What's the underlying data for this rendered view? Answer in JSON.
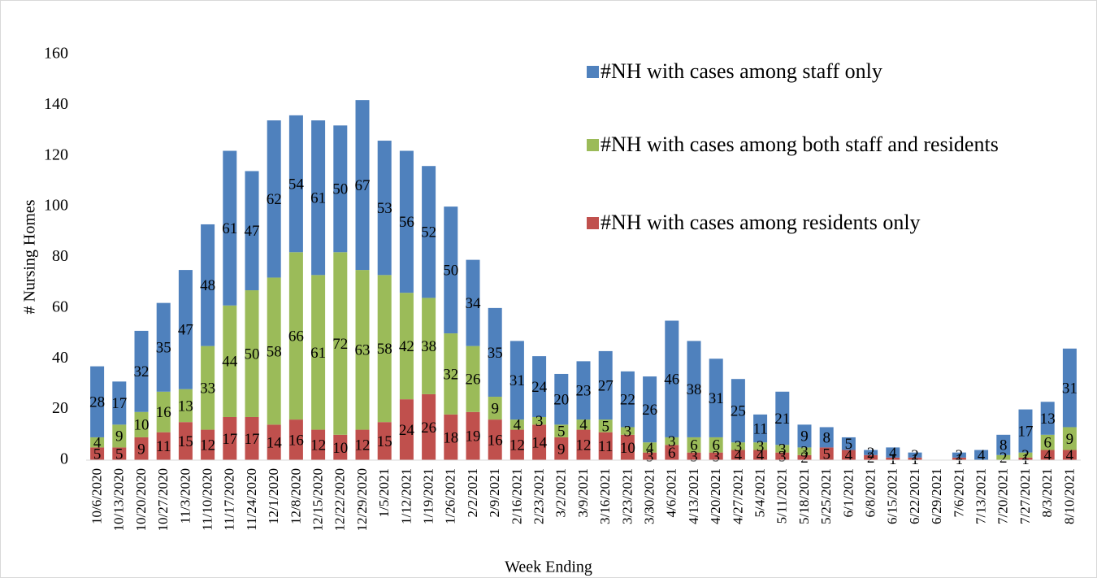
{
  "chart_data": {
    "type": "stacked_bar",
    "x_label": "Week Ending",
    "y_label": "# Nursing Homes",
    "categories": [
      "10/6/2020",
      "10/13/2020",
      "10/20/2020",
      "10/27/2020",
      "11/3/2020",
      "11/10/2020",
      "11/17/2020",
      "11/24/2020",
      "12/1/2020",
      "12/8/2020",
      "12/15/2020",
      "12/22/2020",
      "12/29/2020",
      "1/5/2021",
      "1/12/2021",
      "1/19/2021",
      "1/26/2021",
      "2/2/2021",
      "2/9/2021",
      "2/16/2021",
      "2/23/2021",
      "3/2/2021",
      "3/9/2021",
      "3/16/2021",
      "3/23/2021",
      "3/30/2021",
      "4/6/2021",
      "4/13/2021",
      "4/20/2021",
      "4/27/2021",
      "5/4/2021",
      "5/11/2021",
      "5/18/2021",
      "5/25/2021",
      "6/1/2021",
      "6/8/2021",
      "6/15/2021",
      "6/22/2021",
      "6/29/2021",
      "7/6/2021",
      "7/13/2021",
      "7/20/2021",
      "7/27/2021",
      "8/3/2021",
      "8/10/2021"
    ],
    "series": [
      {
        "name": "#NH with cases among residents only",
        "color": "#c0504d",
        "values": [
          5,
          5,
          9,
          11,
          15,
          12,
          17,
          17,
          14,
          16,
          12,
          10,
          12,
          15,
          24,
          26,
          18,
          19,
          16,
          12,
          14,
          9,
          12,
          11,
          10,
          3,
          6,
          3,
          3,
          4,
          4,
          3,
          2,
          5,
          4,
          2,
          1,
          1,
          null,
          1,
          null,
          null,
          1,
          4,
          4
        ]
      },
      {
        "name": "#NH with cases among both staff and residents",
        "color": "#9bbb59",
        "values": [
          4,
          9,
          10,
          16,
          13,
          33,
          44,
          50,
          58,
          66,
          61,
          72,
          63,
          58,
          42,
          38,
          32,
          26,
          9,
          4,
          3,
          5,
          4,
          5,
          3,
          4,
          3,
          6,
          6,
          3,
          3,
          3,
          3,
          null,
          null,
          null,
          null,
          null,
          null,
          null,
          null,
          2,
          2,
          6,
          9
        ]
      },
      {
        "name": "#NH with cases among staff only",
        "color": "#4f81bd",
        "values": [
          28,
          17,
          32,
          35,
          47,
          48,
          61,
          47,
          62,
          54,
          61,
          50,
          67,
          53,
          56,
          52,
          50,
          34,
          35,
          31,
          24,
          20,
          23,
          27,
          22,
          26,
          46,
          38,
          31,
          25,
          11,
          21,
          9,
          8,
          5,
          2,
          4,
          2,
          null,
          2,
          4,
          8,
          17,
          13,
          31
        ]
      }
    ],
    "ylim": [
      0,
      160
    ],
    "yticks": [
      0,
      20,
      40,
      60,
      80,
      100,
      120,
      140,
      160
    ],
    "grid": false
  }
}
